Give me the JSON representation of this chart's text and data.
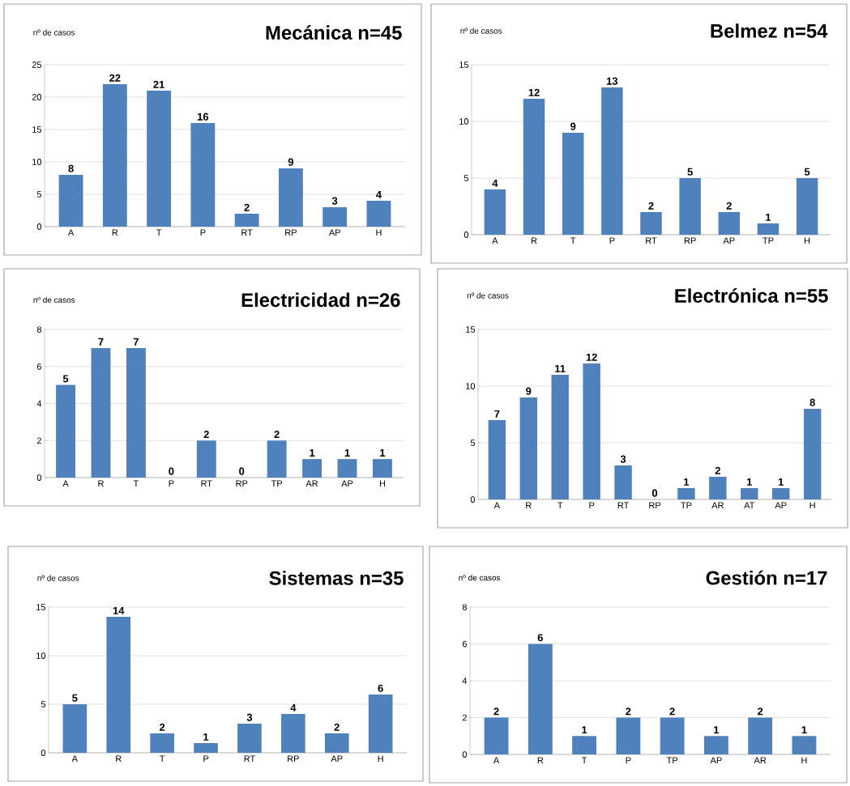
{
  "chart_data": [
    {
      "type": "bar",
      "title": "Mecánica n=45",
      "ylabel": "nº de casos",
      "categories": [
        "A",
        "R",
        "T",
        "P",
        "RT",
        "RP",
        "AP",
        "H"
      ],
      "values": [
        8,
        22,
        21,
        16,
        2,
        9,
        3,
        4
      ],
      "color": "#4f81bd",
      "ylim": [
        0,
        25
      ],
      "yticks": [
        0,
        5,
        10,
        15,
        20,
        25
      ],
      "grid": "y",
      "data_labels": true
    },
    {
      "type": "bar",
      "title": "Belmez n=54",
      "ylabel": "nº de casos",
      "categories": [
        "A",
        "R",
        "T",
        "P",
        "RT",
        "RP",
        "AP",
        "TP",
        "H"
      ],
      "values": [
        4,
        12,
        9,
        13,
        2,
        5,
        2,
        1,
        5
      ],
      "color": "#4f81bd",
      "ylim": [
        0,
        15
      ],
      "yticks": [
        0,
        5,
        10,
        15
      ],
      "grid": "y",
      "data_labels": true
    },
    {
      "type": "bar",
      "title": "Electricidad n=26",
      "ylabel": "nº de casos",
      "categories": [
        "A",
        "R",
        "T",
        "P",
        "RT",
        "RP",
        "TP",
        "AR",
        "AP",
        "H"
      ],
      "values": [
        5,
        7,
        7,
        0,
        2,
        0,
        2,
        1,
        1,
        1
      ],
      "color": "#4f81bd",
      "ylim": [
        0,
        8
      ],
      "yticks": [
        0,
        2,
        4,
        6,
        8
      ],
      "grid": "y",
      "data_labels": true
    },
    {
      "type": "bar",
      "title": "Electrónica n=55",
      "ylabel": "nº de casos",
      "categories": [
        "A",
        "R",
        "T",
        "P",
        "RT",
        "RP",
        "TP",
        "AR",
        "AT",
        "AP",
        "H"
      ],
      "values": [
        7,
        9,
        11,
        12,
        3,
        0,
        1,
        2,
        1,
        1,
        8
      ],
      "color": "#4f81bd",
      "ylim": [
        0,
        15
      ],
      "yticks": [
        0,
        5,
        10,
        15
      ],
      "grid": "y",
      "data_labels": true
    },
    {
      "type": "bar",
      "title": "Sistemas n=35",
      "ylabel": "nº de casos",
      "categories": [
        "A",
        "R",
        "T",
        "P",
        "RT",
        "RP",
        "AP",
        "H"
      ],
      "values": [
        5,
        14,
        2,
        1,
        3,
        4,
        2,
        6
      ],
      "color": "#4f81bd",
      "ylim": [
        0,
        15
      ],
      "yticks": [
        0,
        5,
        10,
        15
      ],
      "grid": "y",
      "data_labels": true
    },
    {
      "type": "bar",
      "title": "Gestión n=17",
      "ylabel": "nº de casos",
      "categories": [
        "A",
        "R",
        "T",
        "P",
        "TP",
        "AP",
        "AR",
        "H"
      ],
      "values": [
        2,
        6,
        1,
        2,
        2,
        1,
        2,
        1
      ],
      "color": "#4f81bd",
      "ylim": [
        0,
        8
      ],
      "yticks": [
        0,
        2,
        4,
        6,
        8
      ],
      "grid": "y",
      "data_labels": true
    }
  ]
}
